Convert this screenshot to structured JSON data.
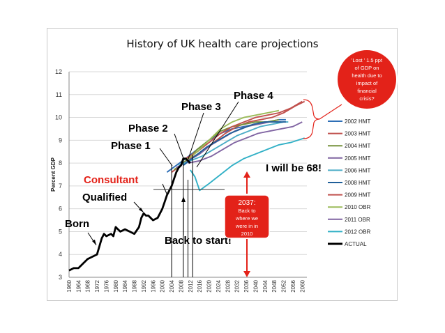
{
  "chart_data": {
    "type": "line",
    "title": "History of UK health care projections",
    "ylabel": "Percent GDP",
    "xlabel": "",
    "ylim": [
      3,
      12
    ],
    "xlim": [
      1960,
      2062
    ],
    "yticks": [
      3,
      4,
      5,
      6,
      7,
      8,
      9,
      10,
      11,
      12
    ],
    "xticks": [
      1960,
      1964,
      1968,
      1972,
      1976,
      1980,
      1984,
      1988,
      1992,
      1996,
      2000,
      2004,
      2008,
      2012,
      2016,
      2020,
      2024,
      2028,
      2032,
      2036,
      2040,
      2044,
      2048,
      2052,
      2056,
      2060
    ],
    "grid": "horizontal",
    "legend_position": "right",
    "series": [
      {
        "name": "2002 HMT",
        "color": "#2e6fb6",
        "x": [
          2002,
          2006,
          2010,
          2015,
          2020,
          2025,
          2030,
          2035,
          2040,
          2045,
          2050,
          2053
        ],
        "y": [
          7.6,
          7.9,
          8.2,
          8.6,
          9.0,
          9.3,
          9.5,
          9.6,
          9.7,
          9.8,
          9.9,
          9.9
        ]
      },
      {
        "name": "2003 HMT",
        "color": "#c0504d",
        "x": [
          2004,
          2008,
          2012,
          2017,
          2022,
          2027,
          2032,
          2037,
          2042,
          2047,
          2052,
          2057,
          2061
        ],
        "y": [
          7.6,
          7.9,
          8.2,
          8.5,
          8.9,
          9.3,
          9.6,
          9.8,
          9.9,
          10.0,
          10.2,
          10.5,
          10.7
        ]
      },
      {
        "name": "2004 HMT",
        "color": "#76923c",
        "x": [
          2005,
          2010,
          2015,
          2020,
          2025,
          2030,
          2035,
          2040,
          2045,
          2050
        ],
        "y": [
          7.7,
          8.1,
          8.6,
          9.0,
          9.4,
          9.6,
          9.7,
          9.8,
          9.8,
          9.9
        ]
      },
      {
        "name": "2005 HMT",
        "color": "#7f64a0",
        "x": [
          2006,
          2011,
          2016,
          2021,
          2026,
          2031,
          2036,
          2041,
          2046,
          2051
        ],
        "y": [
          7.8,
          8.1,
          8.4,
          8.8,
          9.1,
          9.4,
          9.6,
          9.7,
          9.8,
          9.8
        ]
      },
      {
        "name": "2006 HMT",
        "color": "#4bacc6",
        "x": [
          2007,
          2012,
          2017,
          2022,
          2027,
          2032,
          2037,
          2042,
          2047,
          2052,
          2054
        ],
        "y": [
          7.9,
          8.1,
          8.3,
          8.6,
          8.9,
          9.2,
          9.4,
          9.6,
          9.7,
          9.8,
          9.8
        ]
      },
      {
        "name": "2008 HMT",
        "color": "#1f5f99",
        "x": [
          2009,
          2014,
          2019,
          2024,
          2029,
          2034,
          2039,
          2044,
          2049,
          2053
        ],
        "y": [
          7.9,
          8.3,
          8.7,
          9.0,
          9.3,
          9.5,
          9.7,
          9.8,
          9.8,
          9.8
        ]
      },
      {
        "name": "2009 HMT",
        "color": "#c0504d",
        "x": [
          2010,
          2015,
          2020,
          2025,
          2030,
          2035,
          2040,
          2045,
          2050,
          2055,
          2060
        ],
        "y": [
          8.2,
          8.5,
          8.9,
          9.3,
          9.6,
          9.8,
          10.0,
          10.1,
          10.2,
          10.4,
          10.7
        ]
      },
      {
        "name": "2010 OBR",
        "color": "#9bbb59",
        "x": [
          2010,
          2015,
          2020,
          2025,
          2030,
          2035,
          2040,
          2045,
          2050
        ],
        "y": [
          8.1,
          8.5,
          9.0,
          9.5,
          9.8,
          10.0,
          10.1,
          10.2,
          10.3
        ]
      },
      {
        "name": "2011 OBR",
        "color": "#8064a2",
        "x": [
          2011,
          2016,
          2021,
          2026,
          2031,
          2036,
          2041,
          2046,
          2051,
          2056,
          2060
        ],
        "y": [
          8.0,
          8.1,
          8.3,
          8.6,
          8.9,
          9.1,
          9.3,
          9.4,
          9.5,
          9.6,
          9.8
        ]
      },
      {
        "name": "2012 OBR",
        "color": "#31b0c6",
        "x": [
          2012,
          2014,
          2016,
          2020,
          2025,
          2030,
          2035,
          2040,
          2045,
          2050,
          2055,
          2061
        ],
        "y": [
          7.7,
          7.4,
          6.8,
          7.1,
          7.5,
          7.9,
          8.2,
          8.4,
          8.6,
          8.8,
          8.9,
          9.1
        ]
      },
      {
        "name": "ACTUAL",
        "color": "#000000",
        "x": [
          1960,
          1962,
          1964,
          1966,
          1968,
          1970,
          1972,
          1974,
          1975,
          1976,
          1978,
          1979,
          1980,
          1981,
          1982,
          1984,
          1986,
          1988,
          1990,
          1991,
          1992,
          1993,
          1994,
          1996,
          1998,
          1999,
          2000,
          2001,
          2002,
          2003,
          2004,
          2005,
          2006,
          2007,
          2008,
          2009,
          2010,
          2011,
          2012
        ],
        "y": [
          3.3,
          3.4,
          3.4,
          3.6,
          3.8,
          3.9,
          4.0,
          4.7,
          4.9,
          4.8,
          4.9,
          4.8,
          5.2,
          5.1,
          5.0,
          5.1,
          5.0,
          4.9,
          5.2,
          5.6,
          5.8,
          5.7,
          5.7,
          5.5,
          5.6,
          5.8,
          6.0,
          6.3,
          6.6,
          6.8,
          7.0,
          7.3,
          7.6,
          7.8,
          7.9,
          8.2,
          8.2,
          8.1,
          8.0
        ]
      }
    ],
    "annotations": {
      "born": "Born",
      "qualified": "Qualified",
      "consultant": "Consultant",
      "phase1": "Phase 1",
      "phase2": "Phase 2",
      "phase3": "Phase 3",
      "phase4": "Phase 4",
      "will_be": "I will be 68!",
      "back_to_start": "Back to start!",
      "box_2037": [
        "2037:",
        "Back to",
        "where we",
        "were in in",
        "2010"
      ],
      "crisis_note": [
        "'Lost ' 1.5 ppt",
        "of GDP on",
        "health due to",
        "impact of",
        "financial",
        "crisis?"
      ]
    }
  }
}
